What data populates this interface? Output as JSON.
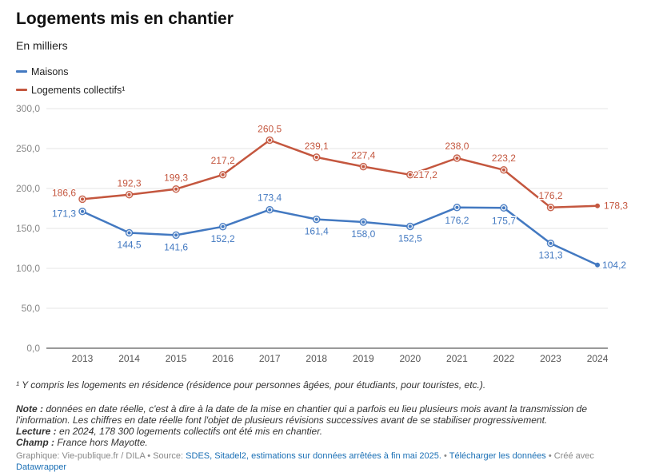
{
  "header": {
    "title": "Logements mis en chantier",
    "subtitle": "En milliers"
  },
  "colors": {
    "maisons": "#4379c1",
    "collectifs": "#c4573f",
    "grid": "#e6e6e6",
    "tick": "#888888"
  },
  "chart_data": {
    "type": "line",
    "title": "Logements mis en chantier",
    "subtitle": "En milliers",
    "categories": [
      "2013",
      "2014",
      "2015",
      "2016",
      "2017",
      "2018",
      "2019",
      "2020",
      "2021",
      "2022",
      "2023",
      "2024"
    ],
    "series": [
      {
        "name": "Maisons",
        "values": [
          171.3,
          144.5,
          141.6,
          152.2,
          173.4,
          161.4,
          158.0,
          152.5,
          176.2,
          175.7,
          131.3,
          104.2
        ],
        "labels": [
          "171,3",
          "144,5",
          "141,6",
          "152,2",
          "173,4",
          "161,4",
          "158,0",
          "152,5",
          "176,2",
          "175,7",
          "131,3",
          "104,2"
        ]
      },
      {
        "name": "Logements collectifs¹",
        "values": [
          186.6,
          192.3,
          199.3,
          217.2,
          260.5,
          239.1,
          227.4,
          217.2,
          238.0,
          223.2,
          176.2,
          178.3
        ],
        "labels": [
          "186,6",
          "192,3",
          "199,3",
          "217,2",
          "260,5",
          "239,1",
          "227,4",
          "217,2",
          "238,0",
          "223,2",
          "176,2",
          "178,3"
        ]
      }
    ],
    "yticks": [
      "0,0",
      "50,0",
      "100,0",
      "150,0",
      "200,0",
      "250,0",
      "300,0"
    ],
    "ylim": [
      0,
      300
    ],
    "grid": true,
    "legend": "top-left"
  },
  "notes": {
    "footnote": "¹ Y compris les logements en résidence (résidence pour personnes âgées, pour étudiants, pour touristes, etc.).",
    "note_label": "Note :",
    "note_text": " données en date réelle, c'est à dire à la date de la mise en chantier qui a parfois eu lieu plusieurs mois avant la transmission de l'information. Les chiffres en date réelle font l'objet de plusieurs révisions successives avant de se stabiliser progressivement.",
    "lecture_label": "Lecture :",
    "lecture_text": " en 2024, 178 300 logements collectifs ont été mis en chantier.",
    "champ_label": "Champ :",
    "champ_text": " France hors Mayotte."
  },
  "credit": {
    "graphique": "Graphique: Vie-publique.fr / DILA • Source: ",
    "source_link": "SDES, Sitadel2, estimations sur données arrêtées à fin mai 2025.",
    "sep": " • ",
    "download_link": "Télécharger les données",
    "created": " • Créé avec ",
    "dw_link": "Datawrapper"
  }
}
